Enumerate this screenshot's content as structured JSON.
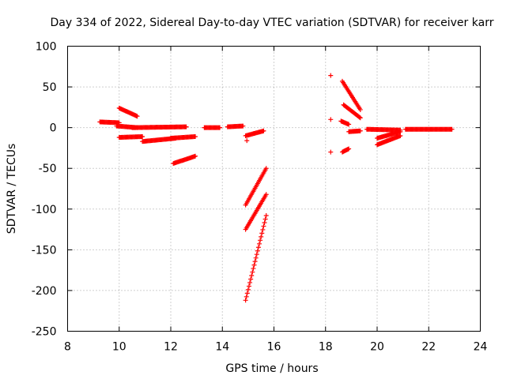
{
  "chart_data": {
    "type": "scatter",
    "title": "Day 334 of 2022, Sidereal Day-to-day VTEC variation (SDTVAR) for receiver karr",
    "xlabel": "GPS time / hours",
    "ylabel": "SDTVAR / TECUs",
    "xlim": [
      8,
      24
    ],
    "ylim": [
      -250,
      100
    ],
    "xticks": [
      8,
      10,
      12,
      14,
      16,
      18,
      20,
      22,
      24
    ],
    "yticks": [
      -250,
      -200,
      -150,
      -100,
      -50,
      0,
      50,
      100
    ],
    "grid": true,
    "marker": "+",
    "color": "#ff0000",
    "segments": [
      {
        "x0": 9.25,
        "x1": 10.0,
        "y0": 7,
        "y1": 6
      },
      {
        "x0": 9.9,
        "x1": 10.7,
        "y0": 2,
        "y1": 0
      },
      {
        "x0": 10.5,
        "x1": 12.6,
        "y0": 0,
        "y1": 1
      },
      {
        "x0": 10.0,
        "x1": 10.7,
        "y0": 24,
        "y1": 14
      },
      {
        "x0": 10.0,
        "x1": 10.9,
        "y0": -12,
        "y1": -11
      },
      {
        "x0": 10.9,
        "x1": 12.2,
        "y0": -17,
        "y1": -13
      },
      {
        "x0": 12.0,
        "x1": 12.95,
        "y0": -13,
        "y1": -11
      },
      {
        "x0": 12.1,
        "x1": 12.95,
        "y0": -44,
        "y1": -35
      },
      {
        "x0": 13.3,
        "x1": 13.9,
        "y0": 0,
        "y1": 0
      },
      {
        "x0": 14.2,
        "x1": 14.8,
        "y0": 1,
        "y1": 2
      },
      {
        "x0": 14.9,
        "x1": 15.6,
        "y0": -10,
        "y1": -4
      },
      {
        "x0": 14.9,
        "x1": 15.7,
        "y0": -95,
        "y1": -50
      },
      {
        "x0": 14.9,
        "x1": 15.7,
        "y0": -125,
        "y1": -82
      },
      {
        "x0": 14.9,
        "x1": 15.7,
        "y0": -212,
        "y1": -108
      },
      {
        "x0": 18.65,
        "x1": 19.35,
        "y0": 57,
        "y1": 22
      },
      {
        "x0": 18.7,
        "x1": 19.35,
        "y0": 28,
        "y1": 12
      },
      {
        "x0": 18.6,
        "x1": 18.9,
        "y0": 8,
        "y1": 4
      },
      {
        "x0": 18.9,
        "x1": 19.35,
        "y0": -5,
        "y1": -4
      },
      {
        "x0": 18.65,
        "x1": 18.9,
        "y0": -30,
        "y1": -26
      },
      {
        "x0": 19.6,
        "x1": 20.9,
        "y0": -2,
        "y1": -3
      },
      {
        "x0": 20.0,
        "x1": 20.9,
        "y0": -21,
        "y1": -10
      },
      {
        "x0": 20.0,
        "x1": 20.9,
        "y0": -13,
        "y1": -5
      },
      {
        "x0": 21.1,
        "x1": 22.9,
        "y0": -2,
        "y1": -2
      }
    ],
    "points": [
      {
        "x": 18.2,
        "y": 64
      },
      {
        "x": 18.2,
        "y": 10
      },
      {
        "x": 18.2,
        "y": -30
      },
      {
        "x": 14.95,
        "y": -16
      }
    ]
  }
}
